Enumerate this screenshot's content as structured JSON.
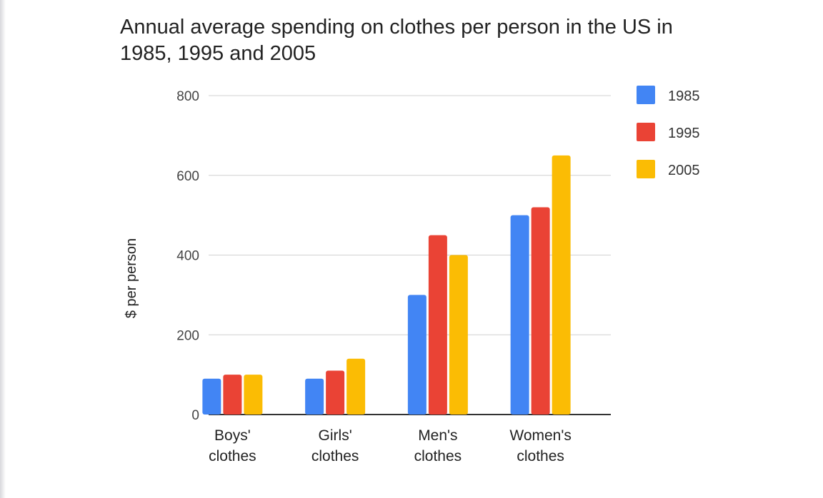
{
  "chart_data": {
    "type": "bar",
    "title": "Annual average spending on clothes per person in the US in 1985, 1995 and 2005",
    "xlabel": "",
    "ylabel": "$ per person",
    "ylim": [
      0,
      800
    ],
    "yticks": [
      "0",
      "200",
      "400",
      "600",
      "800"
    ],
    "grid": true,
    "legend_position": "top-right",
    "categories": [
      [
        "Boys'",
        "clothes"
      ],
      [
        "Girls'",
        "clothes"
      ],
      [
        "Men's",
        "clothes"
      ],
      [
        "Women's",
        "clothes"
      ]
    ],
    "series": [
      {
        "name": "1985",
        "color": "#4285f4",
        "values": [
          90,
          90,
          300,
          500
        ]
      },
      {
        "name": "1995",
        "color": "#ea4335",
        "values": [
          100,
          110,
          450,
          520
        ]
      },
      {
        "name": "2005",
        "color": "#fbbc04",
        "values": [
          100,
          140,
          400,
          650
        ]
      }
    ]
  }
}
